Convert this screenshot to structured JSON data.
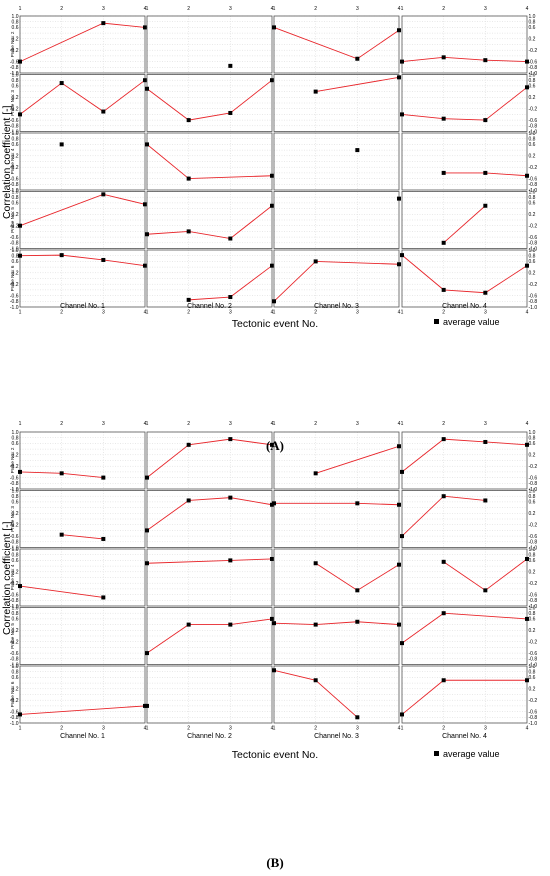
{
  "panels": [
    {
      "label": "(A)",
      "ylabel": "Correlation coefficient [-]",
      "xlabel": "Tectonic event No.",
      "legend": "average value"
    },
    {
      "label": "(B)",
      "ylabel": "Correlation coefficient [-]",
      "xlabel": "Tectonic event No.",
      "legend": "average value"
    }
  ],
  "chart_data": [
    {
      "type": "line",
      "panel": "(A)",
      "title": "",
      "xlabel": "Tectonic event No.",
      "ylabel": "Correlation coefficient [-]",
      "legend": "average value",
      "legend_position": "bottom-right",
      "grid": true,
      "x_ticks": [
        "1",
        "2",
        "3",
        "4"
      ],
      "y_ticks": [
        "-1.0",
        "-0.6",
        "-0.2",
        "0.2",
        "0.6",
        "1.0"
      ],
      "y_tick_labels_all": [
        "1.0",
        "0.8",
        "0.6",
        "0.4",
        "0.2",
        "0.0",
        "-0.2",
        "-0.4",
        "-0.6",
        "-0.8",
        "-1.0"
      ],
      "xlim": [
        1,
        4
      ],
      "ylim": [
        -1,
        1
      ],
      "columns": [
        "Channel No. 1",
        "Channel No. 2",
        "Channel No. 3",
        "Channel No. 4"
      ],
      "rows": [
        "Probe No.: 2",
        "Probe No.: 3",
        "Probe No.: 4",
        "Probe No.: 5",
        "Probe No.: 6"
      ],
      "series": [
        [
          [
            [
              1,
              -0.6
            ],
            [
              3,
              0.75
            ],
            [
              4,
              0.6
            ]
          ],
          [
            [
              3,
              -0.75
            ]
          ],
          [
            [
              1,
              0.6
            ],
            [
              3,
              -0.5
            ],
            [
              4,
              0.5
            ]
          ],
          [
            [
              1,
              -0.6
            ],
            [
              2,
              -0.45
            ],
            [
              3,
              -0.55
            ],
            [
              4,
              -0.6
            ]
          ]
        ],
        [
          [
            [
              1,
              -0.4
            ],
            [
              2,
              0.7
            ],
            [
              3,
              -0.3
            ],
            [
              4,
              0.8
            ]
          ],
          [
            [
              1,
              0.5
            ],
            [
              2,
              -0.6
            ],
            [
              3,
              -0.35
            ],
            [
              4,
              0.8
            ]
          ],
          [
            [
              2,
              0.4
            ],
            [
              4,
              0.9
            ]
          ],
          [
            [
              1,
              -0.4
            ],
            [
              2,
              -0.55
            ],
            [
              3,
              -0.6
            ],
            [
              4,
              0.55
            ]
          ]
        ],
        [
          [
            [
              2,
              0.6
            ]
          ],
          [
            [
              1,
              0.6
            ],
            [
              2,
              -0.6
            ],
            [
              4,
              -0.5
            ]
          ],
          [
            [
              3,
              0.4
            ]
          ],
          [
            [
              2,
              -0.4
            ],
            [
              3,
              -0.4
            ],
            [
              4,
              -0.5
            ]
          ]
        ],
        [
          [
            [
              1,
              -0.2
            ],
            [
              3,
              0.9
            ],
            [
              4,
              0.55
            ]
          ],
          [
            [
              1,
              -0.5
            ],
            [
              2,
              -0.4
            ],
            [
              3,
              -0.65
            ],
            [
              4,
              0.5
            ]
          ],
          [
            [
              4,
              0.75
            ]
          ],
          [
            [
              2,
              -0.8
            ],
            [
              3,
              0.5
            ]
          ]
        ],
        [
          [
            [
              1,
              0.8
            ],
            [
              2,
              0.82
            ],
            [
              3,
              0.65
            ],
            [
              4,
              0.45
            ]
          ],
          [
            [
              2,
              -0.75
            ],
            [
              3,
              -0.65
            ],
            [
              4,
              0.45
            ]
          ],
          [
            [
              1,
              -0.8
            ],
            [
              2,
              0.6
            ],
            [
              4,
              0.5
            ]
          ],
          [
            [
              1,
              0.82
            ],
            [
              2,
              -0.4
            ],
            [
              3,
              -0.5
            ],
            [
              4,
              0.45
            ]
          ]
        ]
      ]
    },
    {
      "type": "line",
      "panel": "(B)",
      "title": "",
      "xlabel": "Tectonic event No.",
      "ylabel": "Correlation coefficient [-]",
      "legend": "average value",
      "legend_position": "bottom-right",
      "grid": true,
      "x_ticks": [
        "1",
        "2",
        "3",
        "4"
      ],
      "y_ticks": [
        "-1.0",
        "-0.6",
        "-0.2",
        "0.2",
        "0.6",
        "1.0"
      ],
      "y_tick_labels_all": [
        "1.0",
        "0.8",
        "0.6",
        "0.4",
        "0.2",
        "0.0",
        "-0.2",
        "-0.4",
        "-0.6",
        "-0.8",
        "-1.0"
      ],
      "xlim": [
        1,
        4
      ],
      "ylim": [
        -1,
        1
      ],
      "columns": [
        "Channel No. 1",
        "Channel No. 2",
        "Channel No. 3",
        "Channel No. 4"
      ],
      "rows": [
        "Probe No.: 2",
        "Probe No.: 3",
        "Probe No.: 4",
        "Probe No.: 5",
        "Probe No.: 6"
      ],
      "series": [
        [
          [
            [
              1,
              -0.4
            ],
            [
              2,
              -0.45
            ],
            [
              3,
              -0.6
            ]
          ],
          [
            [
              1,
              -0.6
            ],
            [
              2,
              0.55
            ],
            [
              3,
              0.75
            ],
            [
              4,
              0.55
            ]
          ],
          [
            [
              2,
              -0.45
            ],
            [
              4,
              0.5
            ]
          ],
          [
            [
              1,
              -0.4
            ],
            [
              2,
              0.75
            ],
            [
              3,
              0.65
            ],
            [
              4,
              0.55
            ]
          ]
        ],
        [
          [
            [
              2,
              -0.55
            ],
            [
              3,
              -0.7
            ]
          ],
          [
            [
              1,
              -0.4
            ],
            [
              2,
              0.65
            ],
            [
              3,
              0.75
            ],
            [
              4,
              0.5
            ]
          ],
          [
            [
              1,
              0.55
            ],
            [
              3,
              0.55
            ],
            [
              4,
              0.5
            ]
          ],
          [
            [
              1,
              -0.6
            ],
            [
              2,
              0.8
            ],
            [
              3,
              0.65
            ]
          ]
        ],
        [
          [
            [
              1,
              -0.3
            ],
            [
              3,
              -0.7
            ]
          ],
          [
            [
              1,
              0.5
            ],
            [
              3,
              0.6
            ],
            [
              4,
              0.65
            ]
          ],
          [
            [
              2,
              0.5
            ],
            [
              3,
              -0.45
            ],
            [
              4,
              0.45
            ]
          ],
          [
            [
              2,
              0.55
            ],
            [
              3,
              -0.45
            ],
            [
              4,
              0.65
            ]
          ]
        ],
        [
          [],
          [
            [
              1,
              -0.6
            ],
            [
              2,
              0.4
            ],
            [
              3,
              0.4
            ],
            [
              4,
              0.6
            ]
          ],
          [
            [
              1,
              0.45
            ],
            [
              2,
              0.4
            ],
            [
              3,
              0.5
            ],
            [
              4,
              0.4
            ]
          ],
          [
            [
              1,
              -0.25
            ],
            [
              2,
              0.8
            ],
            [
              4,
              0.6
            ]
          ]
        ],
        [
          [
            [
              1,
              -0.7
            ],
            [
              4,
              -0.4
            ]
          ],
          [
            [
              1,
              -0.4
            ]
          ],
          [
            [
              1,
              0.85
            ],
            [
              2,
              0.5
            ],
            [
              3,
              -0.8
            ]
          ],
          [
            [
              1,
              -0.7
            ],
            [
              2,
              0.5
            ],
            [
              4,
              0.5
            ]
          ]
        ]
      ]
    }
  ]
}
